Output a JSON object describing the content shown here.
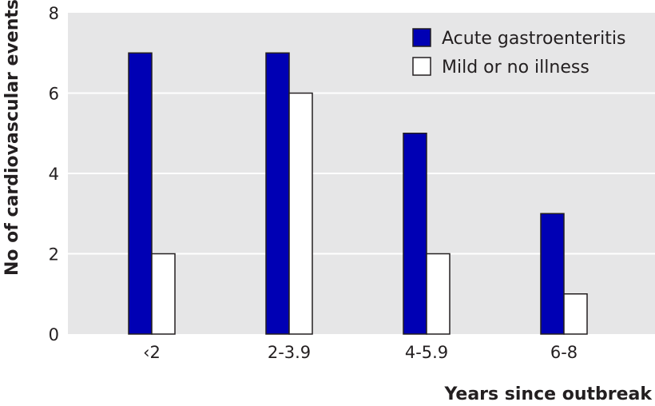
{
  "chart_data": {
    "type": "bar",
    "title": "",
    "xlabel": "Years since outbreak",
    "ylabel": "No of cardiovascular events",
    "categories": [
      "‹2",
      "2-3.9",
      "4-5.9",
      "6-8"
    ],
    "series": [
      {
        "name": "Acute gastroenteritis",
        "values": [
          7,
          7,
          5,
          3
        ],
        "color": "#0000b4"
      },
      {
        "name": "Mild or no illness",
        "values": [
          2,
          6,
          2,
          1
        ],
        "color": "#ffffff"
      }
    ],
    "ylim": [
      0,
      8
    ],
    "yticks": [
      0,
      2,
      4,
      6,
      8
    ],
    "grid": true,
    "legend": "top-right",
    "colors": {
      "plot_background": "#e6e6e7",
      "gridline": "#ffffff",
      "bar_outline": "#231f20",
      "text": "#231f20"
    }
  }
}
